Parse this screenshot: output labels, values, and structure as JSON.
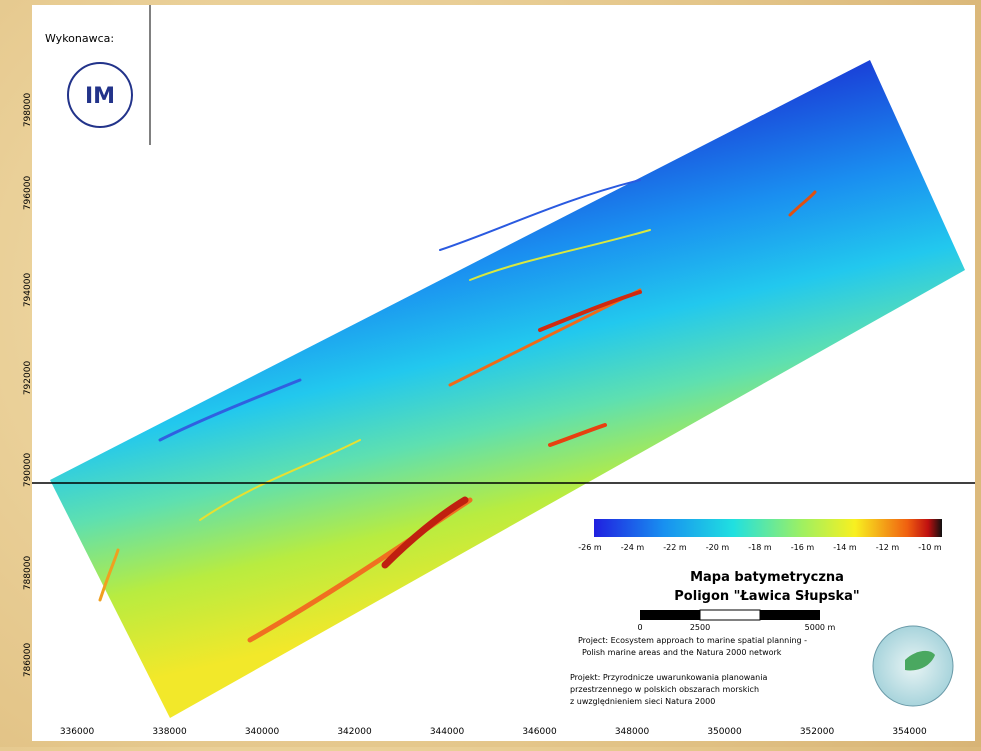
{
  "header": {
    "contractor": "Wykonawca:",
    "logo_text": "IM"
  },
  "axes": {
    "y_labels": [
      "798000",
      "796000",
      "794000",
      "792000",
      "790000",
      "788000",
      "786000"
    ],
    "x_labels": [
      "336000",
      "338000",
      "340000",
      "342000",
      "344000",
      "346000",
      "348000",
      "350000",
      "352000",
      "354000"
    ]
  },
  "legend": {
    "labels": [
      "-26 m",
      "-24 m",
      "-22 m",
      "-20 m",
      "-18 m",
      "-16 m",
      "-14 m",
      "-12 m",
      "-10 m"
    ]
  },
  "title": {
    "line1": "Mapa batymetryczna",
    "line2": "Poligon \"Ławica Słupska\""
  },
  "scale": {
    "labels": [
      "0",
      "2500",
      "5000 m"
    ]
  },
  "notes": {
    "project_en_1": "Project: Ecosystem approach to marine spatial planning -",
    "project_en_2": "Polish marine areas and the Natura 2000 network",
    "project_pl_1": "Projekt: Przyrodnicze uwarunkowania planowania",
    "project_pl_2": "przestrzennego w polskich obszarach morskich",
    "project_pl_3": "z uwzględnieniem sieci Natura 2000"
  }
}
